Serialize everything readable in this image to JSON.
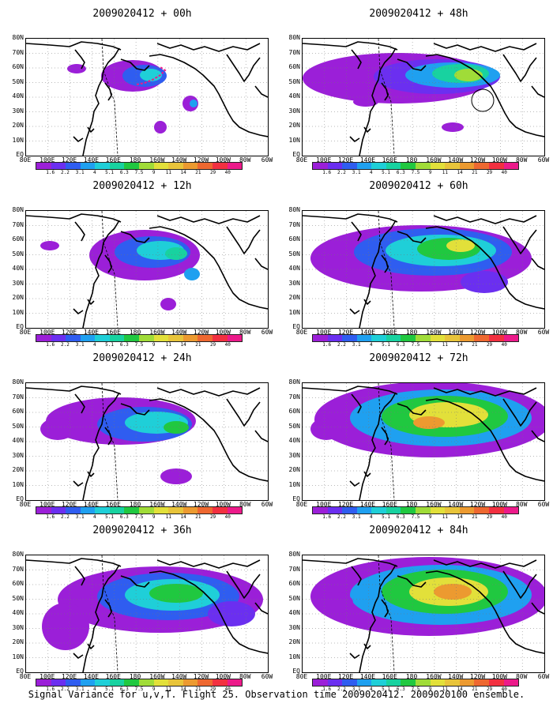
{
  "panels": [
    {
      "title": "2009020412 + 00h"
    },
    {
      "title": "2009020412 + 48h"
    },
    {
      "title": "2009020412 + 12h"
    },
    {
      "title": "2009020412 + 60h"
    },
    {
      "title": "2009020412 + 24h"
    },
    {
      "title": "2009020412 + 72h"
    },
    {
      "title": "2009020412 + 36h"
    },
    {
      "title": "2009020412 + 84h"
    }
  ],
  "lat_labels": [
    "80N",
    "70N",
    "60N",
    "50N",
    "40N",
    "30N",
    "20N",
    "10N",
    "EQ"
  ],
  "lon_labels": [
    "80E",
    "100E",
    "120E",
    "140E",
    "160E",
    "180",
    "160W",
    "140W",
    "120W",
    "100W",
    "80W",
    "60W"
  ],
  "colorbar": {
    "labels": [
      "1.6",
      "2.2",
      "3.1",
      "4",
      "5.1",
      "6.3",
      "7.5",
      "9",
      "11",
      "14",
      "21",
      "29",
      "40"
    ],
    "colors": [
      "#9b1fd8",
      "#6b2ff0",
      "#2f5df0",
      "#1fa0f0",
      "#1fcfd8",
      "#18d2a0",
      "#20c840",
      "#a0dc38",
      "#e2e03a",
      "#e8c43a",
      "#ec9a30",
      "#ee6830",
      "#f23040",
      "#ec1a8a"
    ]
  },
  "caption": "Signal Variance for u,v,T. Flight 25. Observation time 2009020412. 2009020100 ensemble."
}
